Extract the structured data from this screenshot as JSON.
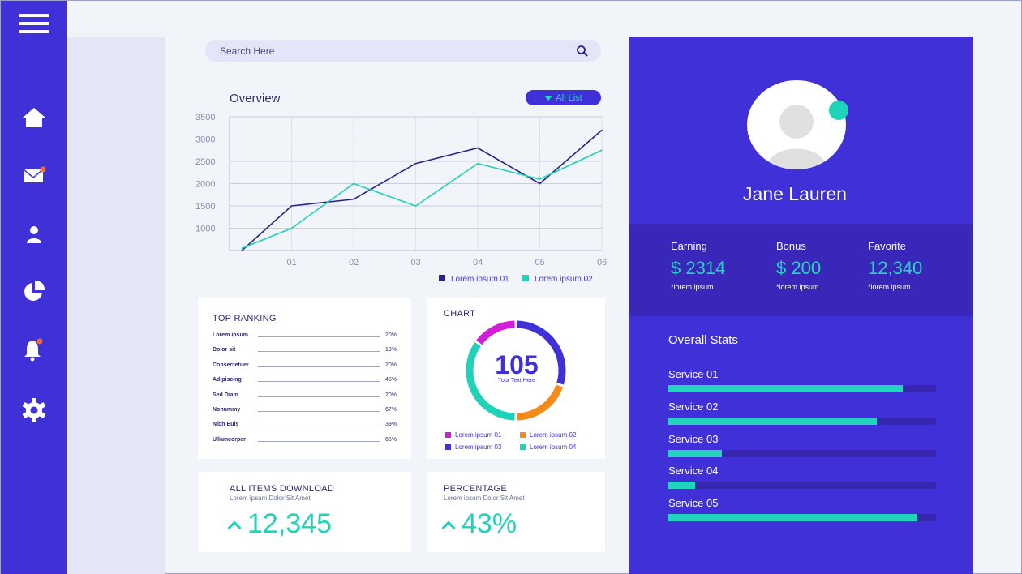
{
  "search": {
    "placeholder": "Search Here"
  },
  "overview": {
    "title": "Overview",
    "filter_label": "All List"
  },
  "chart_data": {
    "type": "line",
    "title": "Overview",
    "categories": [
      "01",
      "02",
      "03",
      "04",
      "05",
      "06"
    ],
    "y_ticks": [
      "3500",
      "3000",
      "2500",
      "2000",
      "1500",
      "1000"
    ],
    "ylim": [
      500,
      3500
    ],
    "x": [
      0.2,
      1,
      2,
      3,
      4,
      5,
      6
    ],
    "series": [
      {
        "name": "Lorem ipsum 01",
        "color": "#2a2585",
        "values": [
          500,
          1500,
          1650,
          2450,
          2800,
          2000,
          3200
        ]
      },
      {
        "name": "Lorem ipsum 02",
        "color": "#1fd2b8",
        "values": [
          550,
          1000,
          2000,
          1500,
          2450,
          2100,
          2750
        ]
      }
    ],
    "legend": [
      "Lorem ipsum 01",
      "Lorem ipsum 02"
    ],
    "legend_position": "bottom-right",
    "grid": true
  },
  "ranking": {
    "title": "TOP RANKING",
    "items": [
      {
        "label": "Lorem ipsum",
        "pct": "20%"
      },
      {
        "label": "Dolor sit",
        "pct": "19%"
      },
      {
        "label": "Consectetuer",
        "pct": "20%"
      },
      {
        "label": "Adipiscing",
        "pct": "45%"
      },
      {
        "label": "Sed Diam",
        "pct": "20%"
      },
      {
        "label": "Nonummy",
        "pct": "67%"
      },
      {
        "label": "Nibh Euis",
        "pct": "39%"
      },
      {
        "label": "Ullamcorper",
        "pct": "65%"
      }
    ]
  },
  "donut": {
    "title": "CHART",
    "value": "105",
    "subtitle": "Your Text Here",
    "segments": [
      {
        "name": "Lorem ipsum 01",
        "color": "#d21ed6",
        "share": 0.15
      },
      {
        "name": "Lorem ipsum 02",
        "color": "#f38a1a",
        "share": 0.2
      },
      {
        "name": "Lorem ipsum 03",
        "color": "#3f31d7",
        "share": 0.3
      },
      {
        "name": "Lorem ipsum 04",
        "color": "#1fd2b8",
        "share": 0.35
      }
    ]
  },
  "downloads": {
    "title": "ALL ITEMS DOWNLOAD",
    "subtitle": "Lorem ipsum Dolor Sit Amet",
    "value": "12,345"
  },
  "percentage": {
    "title": "PERCENTAGE",
    "subtitle": "Lorem ipsum Dolor Sit Amet",
    "value": "43%"
  },
  "profile": {
    "name": "Jane Lauren",
    "stats": [
      {
        "label": "Earning",
        "value": "$ 2314",
        "sub": "*lorem ipsum"
      },
      {
        "label": "Bonus",
        "value": "$ 200",
        "sub": "*lorem ipsum"
      },
      {
        "label": "Favorite",
        "value": "12,340",
        "sub": "*lorem ipsum"
      }
    ],
    "overall_title": "Overall Stats",
    "services": [
      {
        "label": "Service  01",
        "progress": 0.875
      },
      {
        "label": "Service 02",
        "progress": 0.78
      },
      {
        "label": "Service 03",
        "progress": 0.2
      },
      {
        "label": "Service 04",
        "progress": 0.1
      },
      {
        "label": "Service  05",
        "progress": 0.93
      }
    ]
  },
  "icons": [
    "menu-icon",
    "home-icon",
    "mail-icon",
    "user-icon",
    "pie-chart-icon",
    "bell-icon",
    "gear-icon",
    "search-icon"
  ],
  "colors": {
    "primary": "#3f31d7",
    "accent": "#1fd2b8",
    "notification": "#f26b3a"
  }
}
